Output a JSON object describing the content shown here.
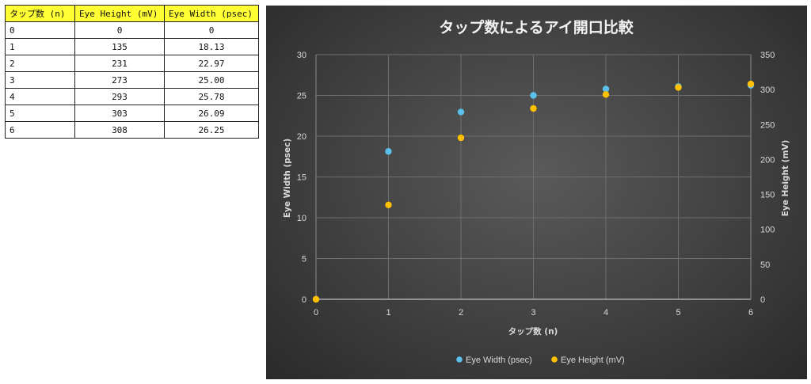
{
  "table": {
    "headers": [
      "タップ数 (n)",
      "Eye Height (mV)",
      "Eye Width (psec)"
    ],
    "rows": [
      [
        "0",
        "0",
        "0"
      ],
      [
        "1",
        "135",
        "18.13"
      ],
      [
        "2",
        "231",
        "22.97"
      ],
      [
        "3",
        "273",
        "25.00"
      ],
      [
        "4",
        "293",
        "25.78"
      ],
      [
        "5",
        "303",
        "26.09"
      ],
      [
        "6",
        "308",
        "26.25"
      ]
    ]
  },
  "chart_data": {
    "type": "scatter",
    "title": "タップ数によるアイ開口比較",
    "xlabel": "タップ数 (n)",
    "ylabel": "Eye Width (psec)",
    "y2label": "Eye Height (mV)",
    "xlim": [
      0,
      6
    ],
    "ylim": [
      0,
      30
    ],
    "y2lim": [
      0,
      350
    ],
    "xticks": [
      "0",
      "1",
      "2",
      "3",
      "4",
      "5",
      "6"
    ],
    "yticks": [
      "0",
      "5",
      "10",
      "15",
      "20",
      "25",
      "30"
    ],
    "y2ticks": [
      "0",
      "50",
      "100",
      "150",
      "200",
      "250",
      "300",
      "350"
    ],
    "grid": true,
    "legend_position": "bottom",
    "series": [
      {
        "name": "Eye Width (psec)",
        "axis": "left",
        "color": "#5bc0eb",
        "x": [
          0,
          1,
          2,
          3,
          4,
          5,
          6
        ],
        "y": [
          0,
          18.13,
          22.97,
          25.0,
          25.78,
          26.09,
          26.25
        ]
      },
      {
        "name": "Eye Height (mV)",
        "axis": "right",
        "color": "#ffc000",
        "x": [
          0,
          1,
          2,
          3,
          4,
          5,
          6
        ],
        "y": [
          0,
          135,
          231,
          273,
          293,
          303,
          308
        ]
      }
    ]
  }
}
